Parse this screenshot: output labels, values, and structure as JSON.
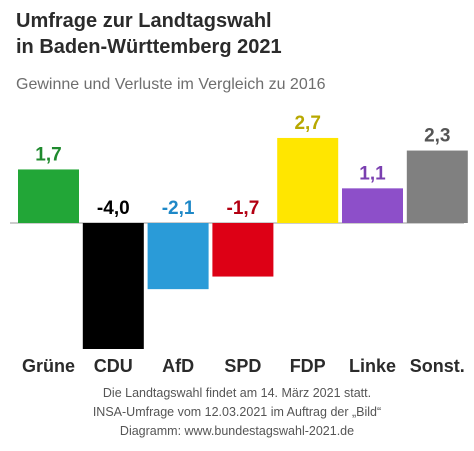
{
  "header": {
    "title_line1": "Umfrage zur Landtagswahl",
    "title_line2": "in Baden-Württemberg 2021",
    "subtitle": "Gewinne und Verluste im Vergleich zu 2016"
  },
  "footer": {
    "line1": "Die Landtagswahl findet am 14. März 2021 statt.",
    "line2": "INSA-Umfrage vom 12.03.2021 im Auftrag der „Bild“",
    "line3": "Diagramm: www.bundestagswahl-2021.de"
  },
  "chart_data": {
    "type": "bar",
    "categories": [
      "Grüne",
      "CDU",
      "AfD",
      "SPD",
      "FDP",
      "Linke",
      "Sonst."
    ],
    "values": [
      1.7,
      -4.0,
      -2.1,
      -1.7,
      2.7,
      1.1,
      2.3
    ],
    "value_labels": [
      "1,7",
      "-4,0",
      "-2,1",
      "-1,7",
      "2,7",
      "1,1",
      "2,3"
    ],
    "bar_colors": [
      "#22a637",
      "#000000",
      "#2a9bd8",
      "#dd0015",
      "#ffe600",
      "#8d4fc9",
      "#808080"
    ],
    "label_colors": [
      "#1f8a2e",
      "#000000",
      "#1e88c7",
      "#b30012",
      "#b8a800",
      "#7a3fb0",
      "#555555"
    ],
    "xlabel": "",
    "ylabel": "",
    "grid": false,
    "legend": "none",
    "ylim": [
      -4.0,
      2.7
    ]
  }
}
